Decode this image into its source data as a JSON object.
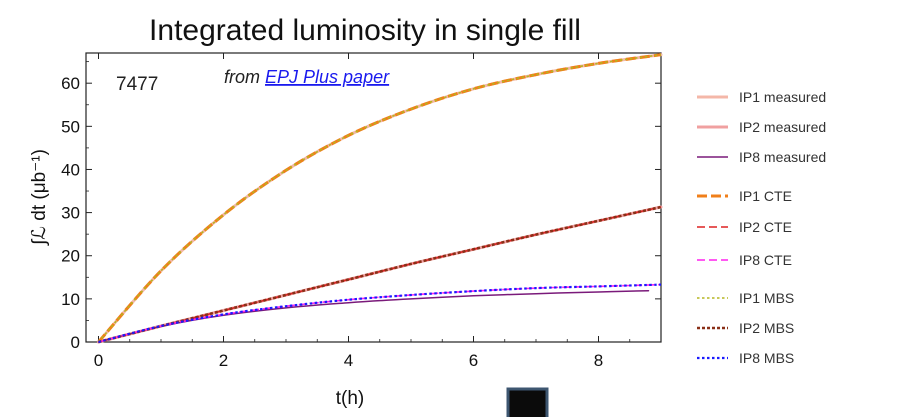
{
  "chart_data": {
    "type": "line",
    "title": "Integrated luminosity in single fill",
    "xlabel": "t(h)",
    "ylabel": "∫ℒ dt (μb⁻¹)",
    "xlim": [
      -0.2,
      9.0
    ],
    "ylim": [
      0,
      67
    ],
    "xticks": [
      0,
      2,
      4,
      6,
      8
    ],
    "yticks": [
      0,
      10,
      20,
      30,
      40,
      50,
      60
    ],
    "fill_number": "7477",
    "source_note": {
      "prefix": "from ",
      "link_text": "EPJ Plus paper"
    },
    "grid": false,
    "legend_position": "right",
    "series": [
      {
        "name": "IP1 measured",
        "color": "#f4b7a8",
        "style": "solid",
        "width": 3,
        "x": [
          0,
          1,
          2,
          3,
          4,
          5,
          6,
          7,
          8,
          9
        ],
        "y": [
          0,
          16.5,
          29.5,
          39.8,
          47.9,
          54.0,
          58.7,
          62.0,
          64.6,
          66.6
        ]
      },
      {
        "name": "IP2 measured",
        "color": "#f0a0a0",
        "style": "solid",
        "width": 3,
        "x": [
          0,
          1,
          2,
          3,
          4,
          5,
          6,
          7,
          8,
          9
        ],
        "y": [
          0,
          3.7,
          7.3,
          10.9,
          14.5,
          18.1,
          21.5,
          24.9,
          28.1,
          31.3
        ]
      },
      {
        "name": "IP8 measured",
        "color": "#7a1a7a",
        "style": "solid",
        "width": 1.5,
        "x": [
          0,
          1,
          2,
          3,
          4,
          5,
          6,
          7,
          8,
          8.8
        ],
        "y": [
          0,
          3.6,
          6.2,
          7.9,
          9.1,
          10.0,
          10.7,
          11.2,
          11.6,
          11.9
        ]
      },
      {
        "name": "IP1 CTE",
        "color": "#f07f1a",
        "style": "dashed",
        "width": 3,
        "x": [
          0,
          1,
          2,
          3,
          4,
          5,
          6,
          7,
          8,
          9
        ],
        "y": [
          0,
          16.5,
          29.5,
          39.8,
          47.9,
          54.0,
          58.7,
          62.0,
          64.6,
          66.6
        ]
      },
      {
        "name": "IP2 CTE",
        "color": "#dd2222",
        "style": "dashed",
        "width": 1.6,
        "x": [
          0,
          1,
          2,
          3,
          4,
          5,
          6,
          7,
          8,
          9
        ],
        "y": [
          0,
          3.7,
          7.3,
          10.9,
          14.5,
          18.1,
          21.5,
          24.9,
          28.1,
          31.3
        ]
      },
      {
        "name": "IP8 CTE",
        "color": "#ff22ee",
        "style": "dashed",
        "width": 1.6,
        "x": [
          0,
          1,
          2,
          3,
          4,
          5,
          6,
          7,
          8,
          9
        ],
        "y": [
          0,
          3.7,
          6.4,
          8.3,
          9.8,
          10.9,
          11.8,
          12.5,
          12.9,
          13.3
        ]
      },
      {
        "name": "IP1 MBS",
        "color": "#b5b520",
        "style": "dotted",
        "width": 1.6,
        "x": [
          0,
          1,
          2,
          3,
          4,
          5,
          6,
          7,
          8,
          9
        ],
        "y": [
          0,
          16.5,
          29.5,
          39.8,
          47.9,
          54.0,
          58.7,
          62.0,
          64.6,
          66.6
        ]
      },
      {
        "name": "IP2 MBS",
        "color": "#8a3018",
        "style": "dotted",
        "width": 2.6,
        "x": [
          0,
          1,
          2,
          3,
          4,
          5,
          6,
          7,
          8,
          9
        ],
        "y": [
          0,
          3.7,
          7.3,
          10.9,
          14.5,
          18.1,
          21.5,
          24.9,
          28.1,
          31.3
        ]
      },
      {
        "name": "IP8 MBS",
        "color": "#1a1aff",
        "style": "dotted",
        "width": 2.2,
        "x": [
          0,
          1,
          2,
          3,
          4,
          5,
          6,
          7,
          8,
          9
        ],
        "y": [
          0,
          3.7,
          6.4,
          8.3,
          9.8,
          10.9,
          11.8,
          12.5,
          12.9,
          13.3
        ]
      }
    ]
  },
  "overlay_box": {
    "fill": "#0b0b0b",
    "border": "#3d5670"
  }
}
